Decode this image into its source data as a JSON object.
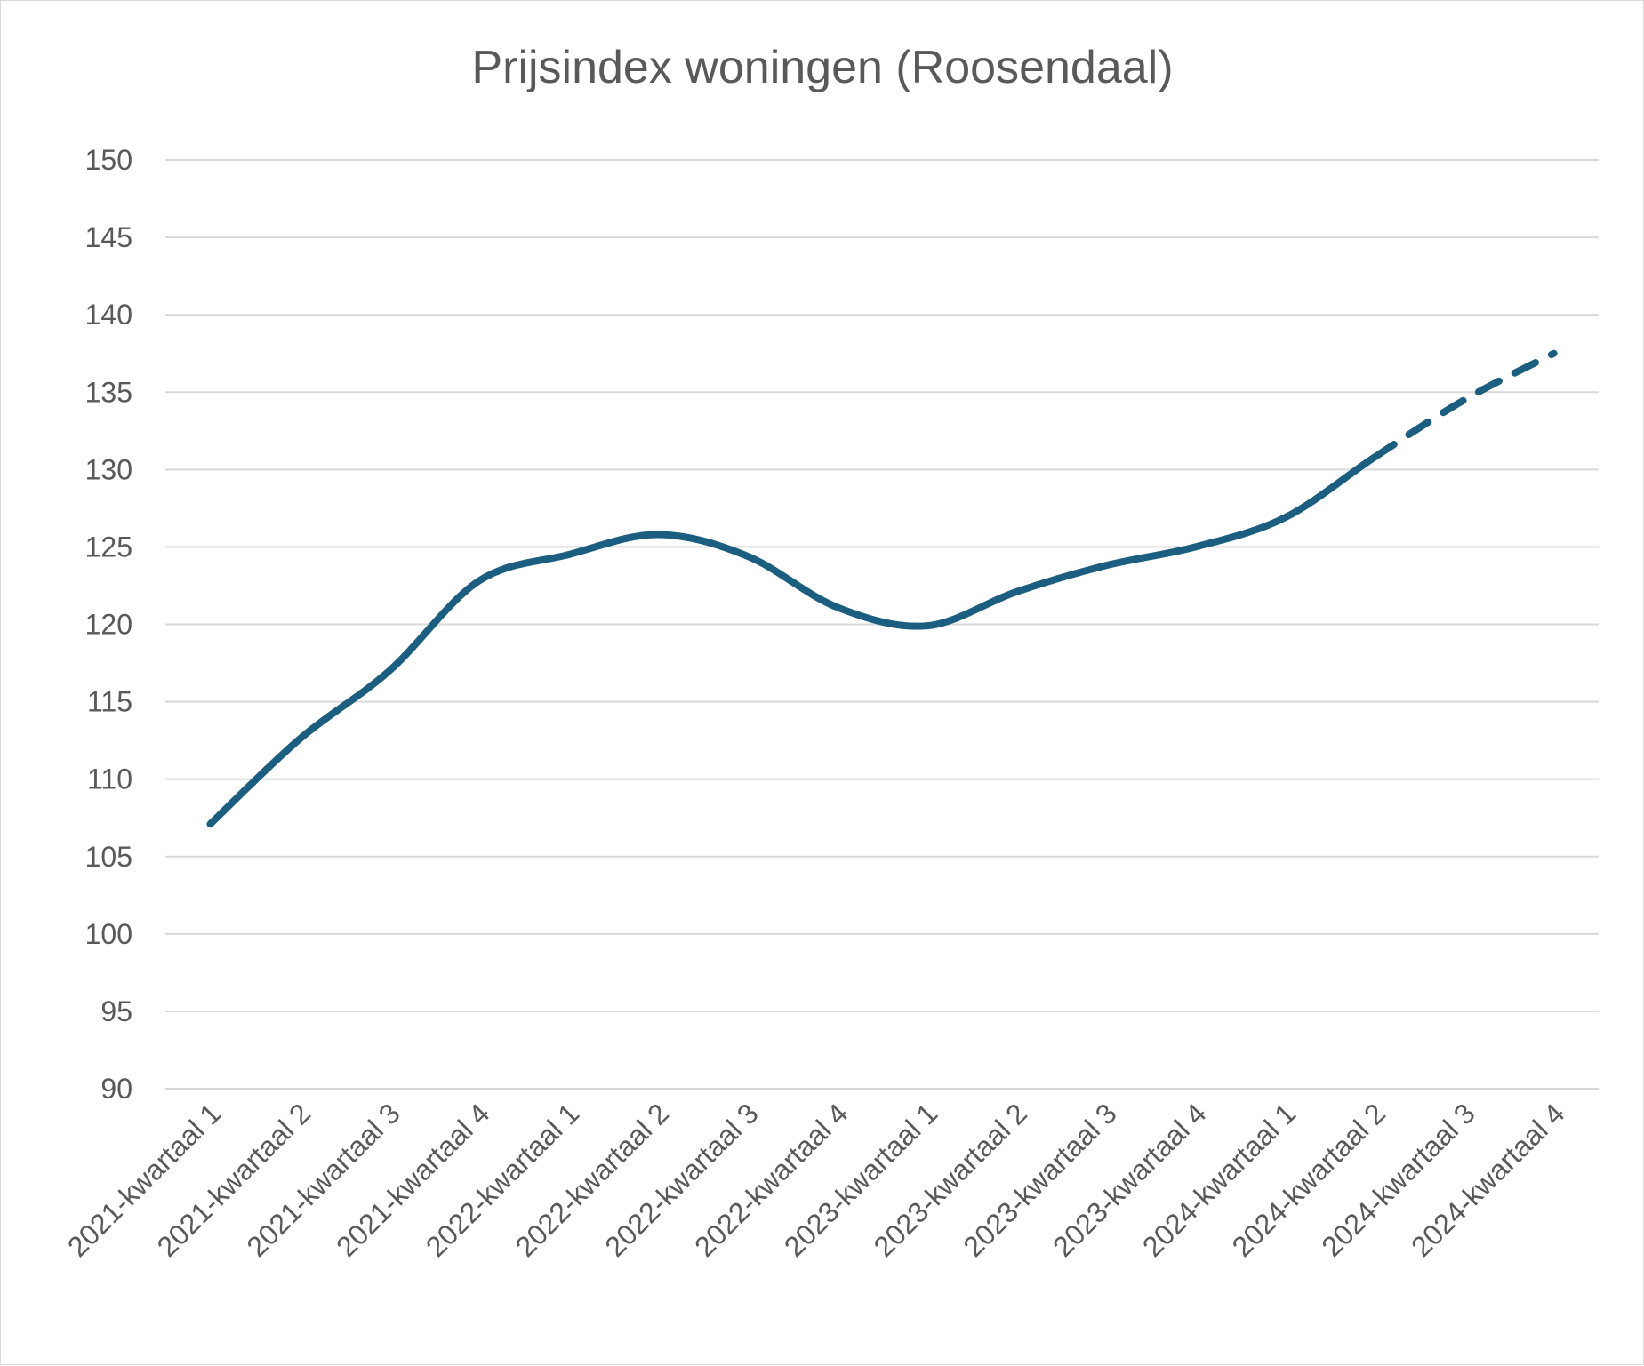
{
  "chart_data": {
    "type": "line",
    "title": "Prijsindex woningen (Roosendaal)",
    "xlabel": "",
    "ylabel": "",
    "ylim": [
      90,
      150
    ],
    "yticks": [
      90,
      95,
      100,
      105,
      110,
      115,
      120,
      125,
      130,
      135,
      140,
      145,
      150
    ],
    "grid": true,
    "legend": "none",
    "categories": [
      "2021-kwartaal 1",
      "2021-kwartaal 2",
      "2021-kwartaal 3",
      "2021-kwartaal 4",
      "2022-kwartaal 1",
      "2022-kwartaal 2",
      "2022-kwartaal 3",
      "2022-kwartaal 4",
      "2023-kwartaal 1",
      "2023-kwartaal 2",
      "2023-kwartaal 3",
      "2023-kwartaal 4",
      "2024-kwartaal 1",
      "2024-kwartaal 2",
      "2024-kwartaal 3",
      "2024-kwartaal 4"
    ],
    "series": [
      {
        "values": [
          107.1,
          112.6,
          117.0,
          122.8,
          124.5,
          125.8,
          124.4,
          121.1,
          119.9,
          122.1,
          123.8,
          125.0,
          126.9,
          130.8,
          134.5,
          137.5
        ],
        "color": "#1b5e80",
        "dashed_from_index": 13
      }
    ]
  }
}
